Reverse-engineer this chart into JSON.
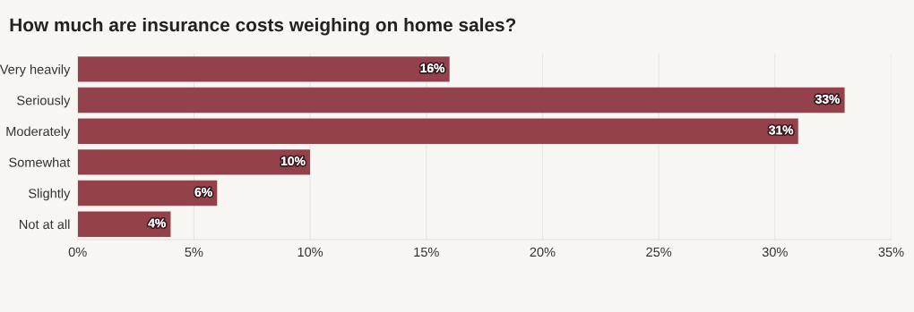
{
  "chart_data": {
    "type": "bar",
    "orientation": "horizontal",
    "title": "How much are insurance costs weighing on home sales?",
    "categories": [
      "Very heavily",
      "Seriously",
      "Moderately",
      "Somewhat",
      "Slightly",
      "Not at all"
    ],
    "values": [
      16,
      33,
      31,
      10,
      6,
      4
    ],
    "value_labels": [
      "16%",
      "33%",
      "31%",
      "10%",
      "6%",
      "4%"
    ],
    "color": "#93424c",
    "xlim": [
      0,
      35
    ],
    "xticks": [
      {
        "value": 0,
        "label": "0%"
      },
      {
        "value": 5,
        "label": "5%"
      },
      {
        "value": 10,
        "label": "10%"
      },
      {
        "value": 15,
        "label": "15%"
      },
      {
        "value": 20,
        "label": "20%"
      },
      {
        "value": 25,
        "label": "25%"
      },
      {
        "value": 30,
        "label": "30%"
      },
      {
        "value": 35,
        "label": "35%"
      }
    ],
    "grid": "x",
    "legend": false
  }
}
